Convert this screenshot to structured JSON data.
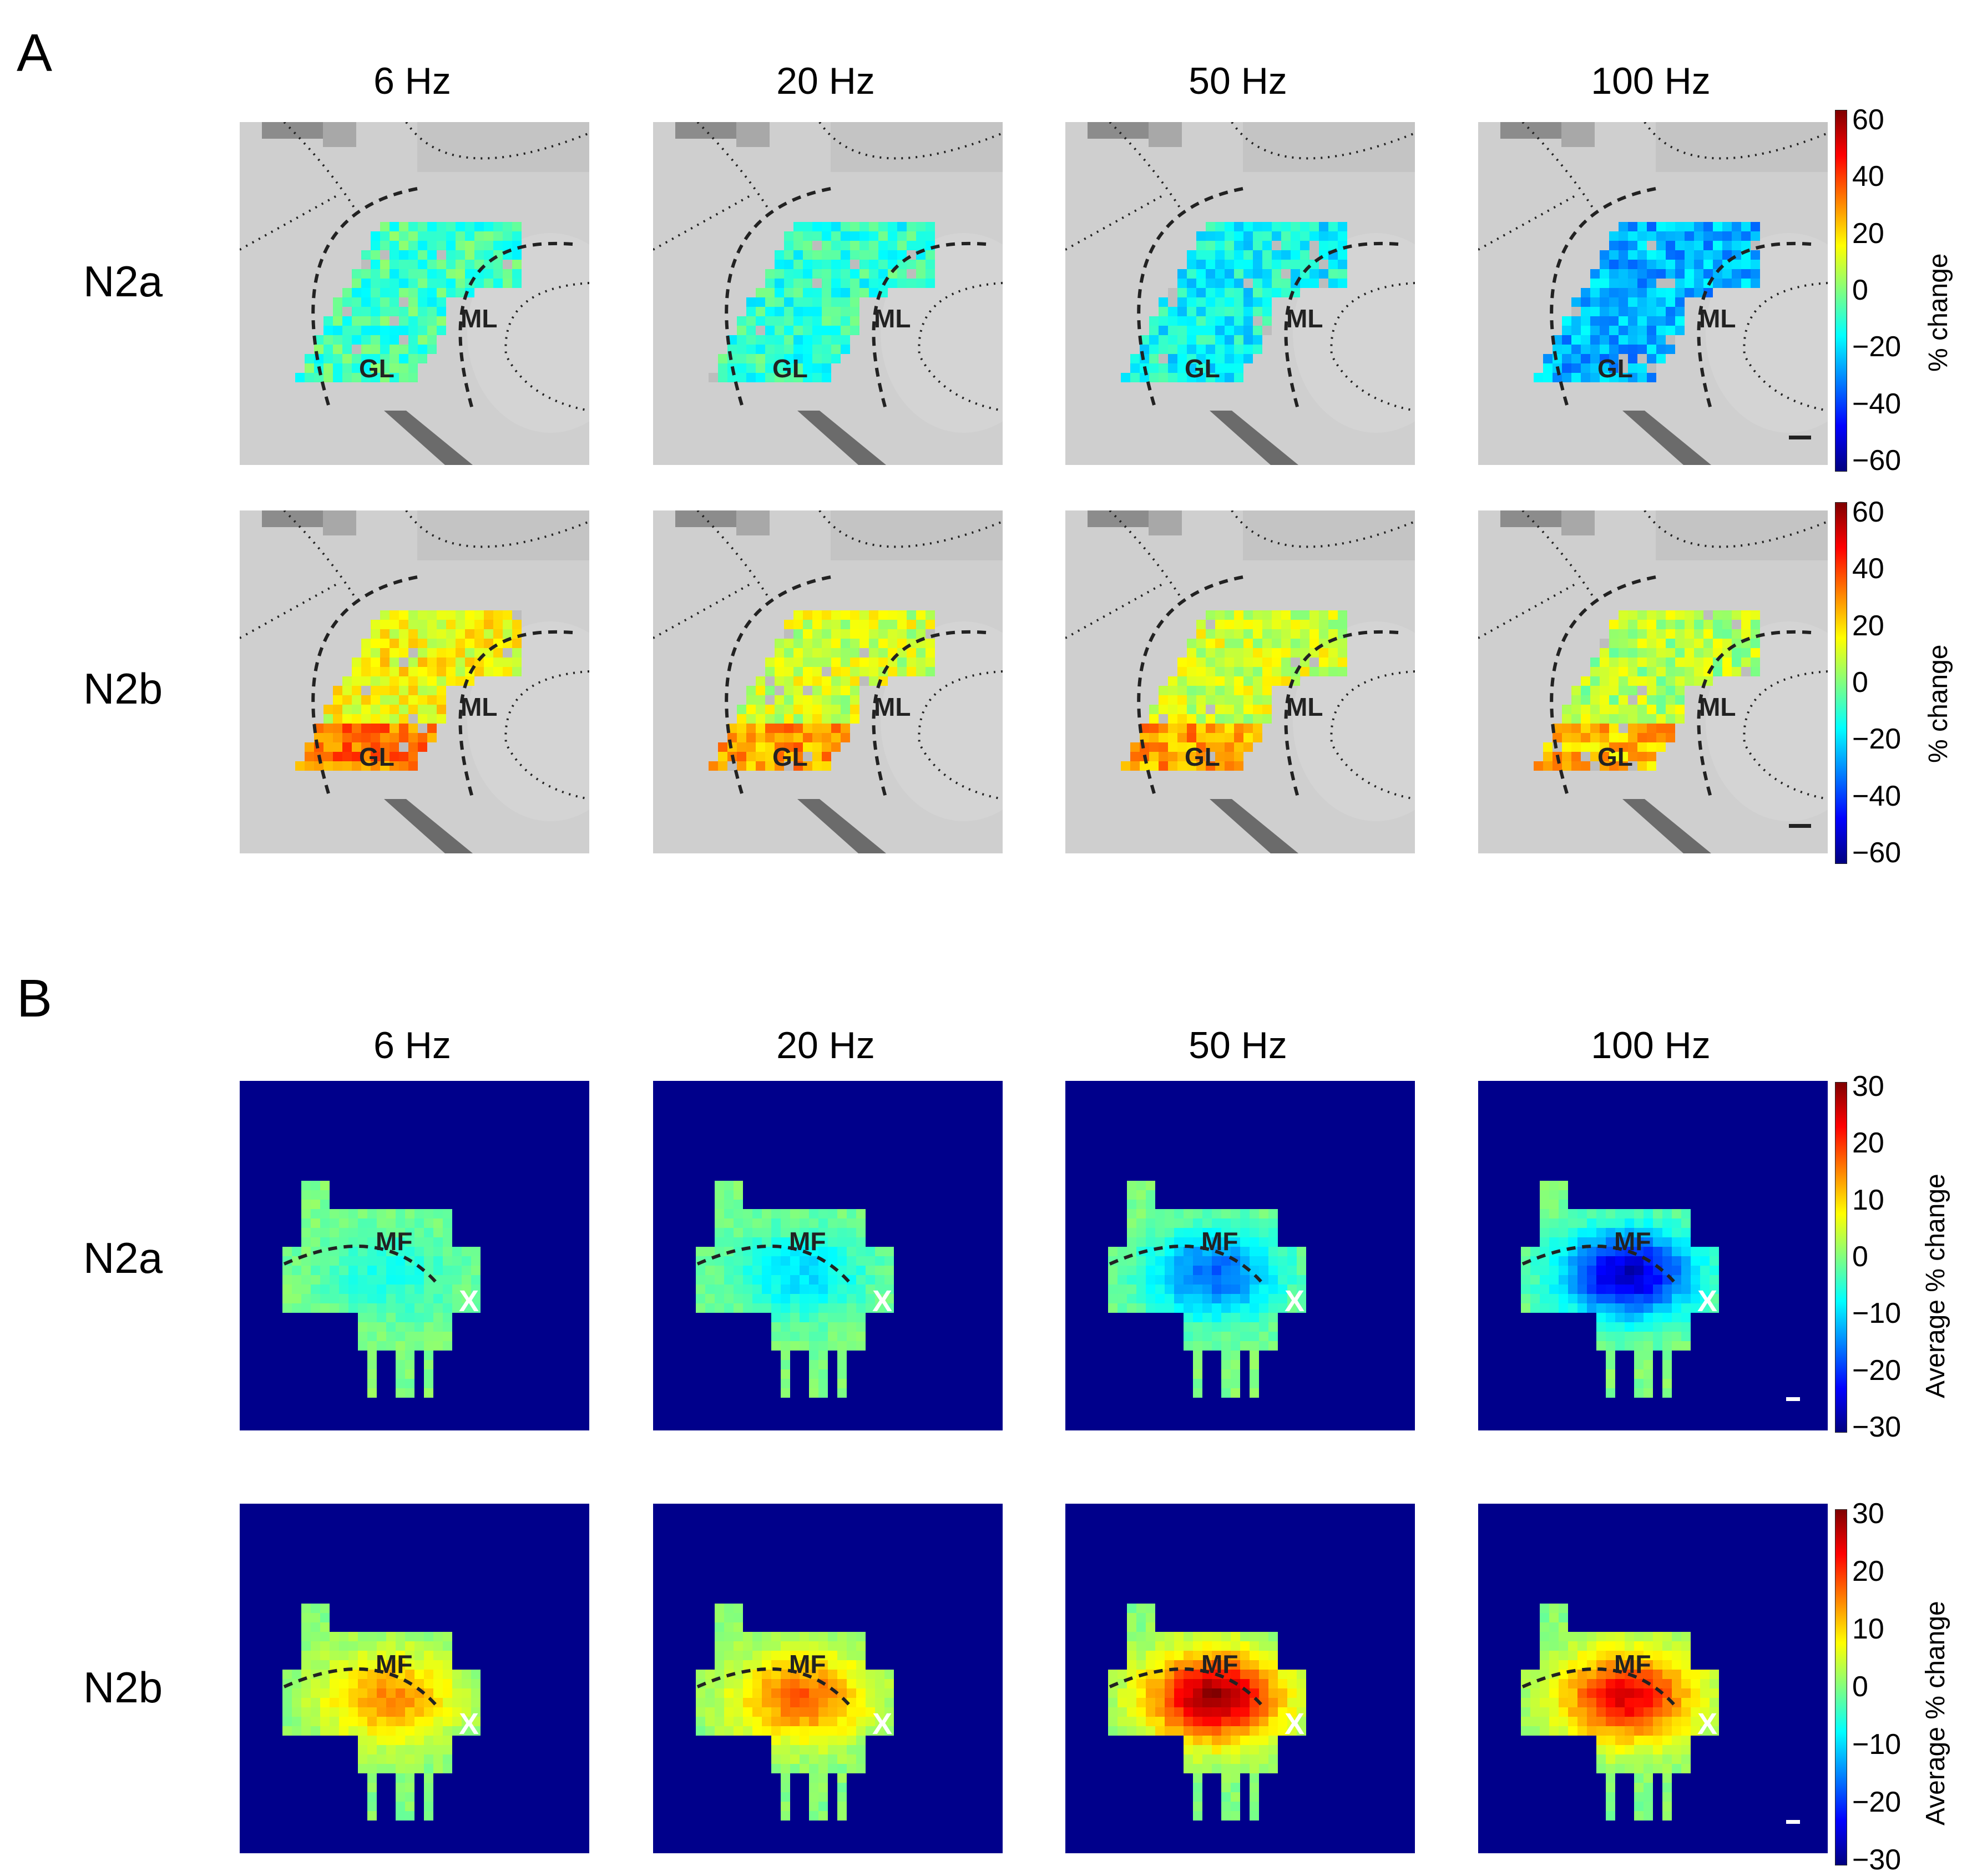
{
  "figure": {
    "panel_a": {
      "letter": "A",
      "columns": [
        "6 Hz",
        "20 Hz",
        "50 Hz",
        "100 Hz"
      ],
      "rows": [
        "N2a",
        "N2b"
      ],
      "region_labels": {
        "ml": "ML",
        "gl": "GL"
      },
      "colorbar": {
        "ticks": [
          "60",
          "40",
          "20",
          "0",
          "−20",
          "−40",
          "−60"
        ],
        "label": "% change"
      }
    },
    "panel_b": {
      "letter": "B",
      "columns": [
        "6 Hz",
        "20 Hz",
        "50 Hz",
        "100 Hz"
      ],
      "rows": [
        "N2a",
        "N2b"
      ],
      "region_labels": {
        "mf": "MF",
        "x": "X"
      },
      "colorbar": {
        "ticks": [
          "30",
          "20",
          "10",
          "0",
          "−10",
          "−20",
          "−30"
        ],
        "label": "Average % change"
      }
    },
    "colors": {
      "background_b": "#00008b",
      "gray_tissue": "#cfcfcf"
    }
  }
}
